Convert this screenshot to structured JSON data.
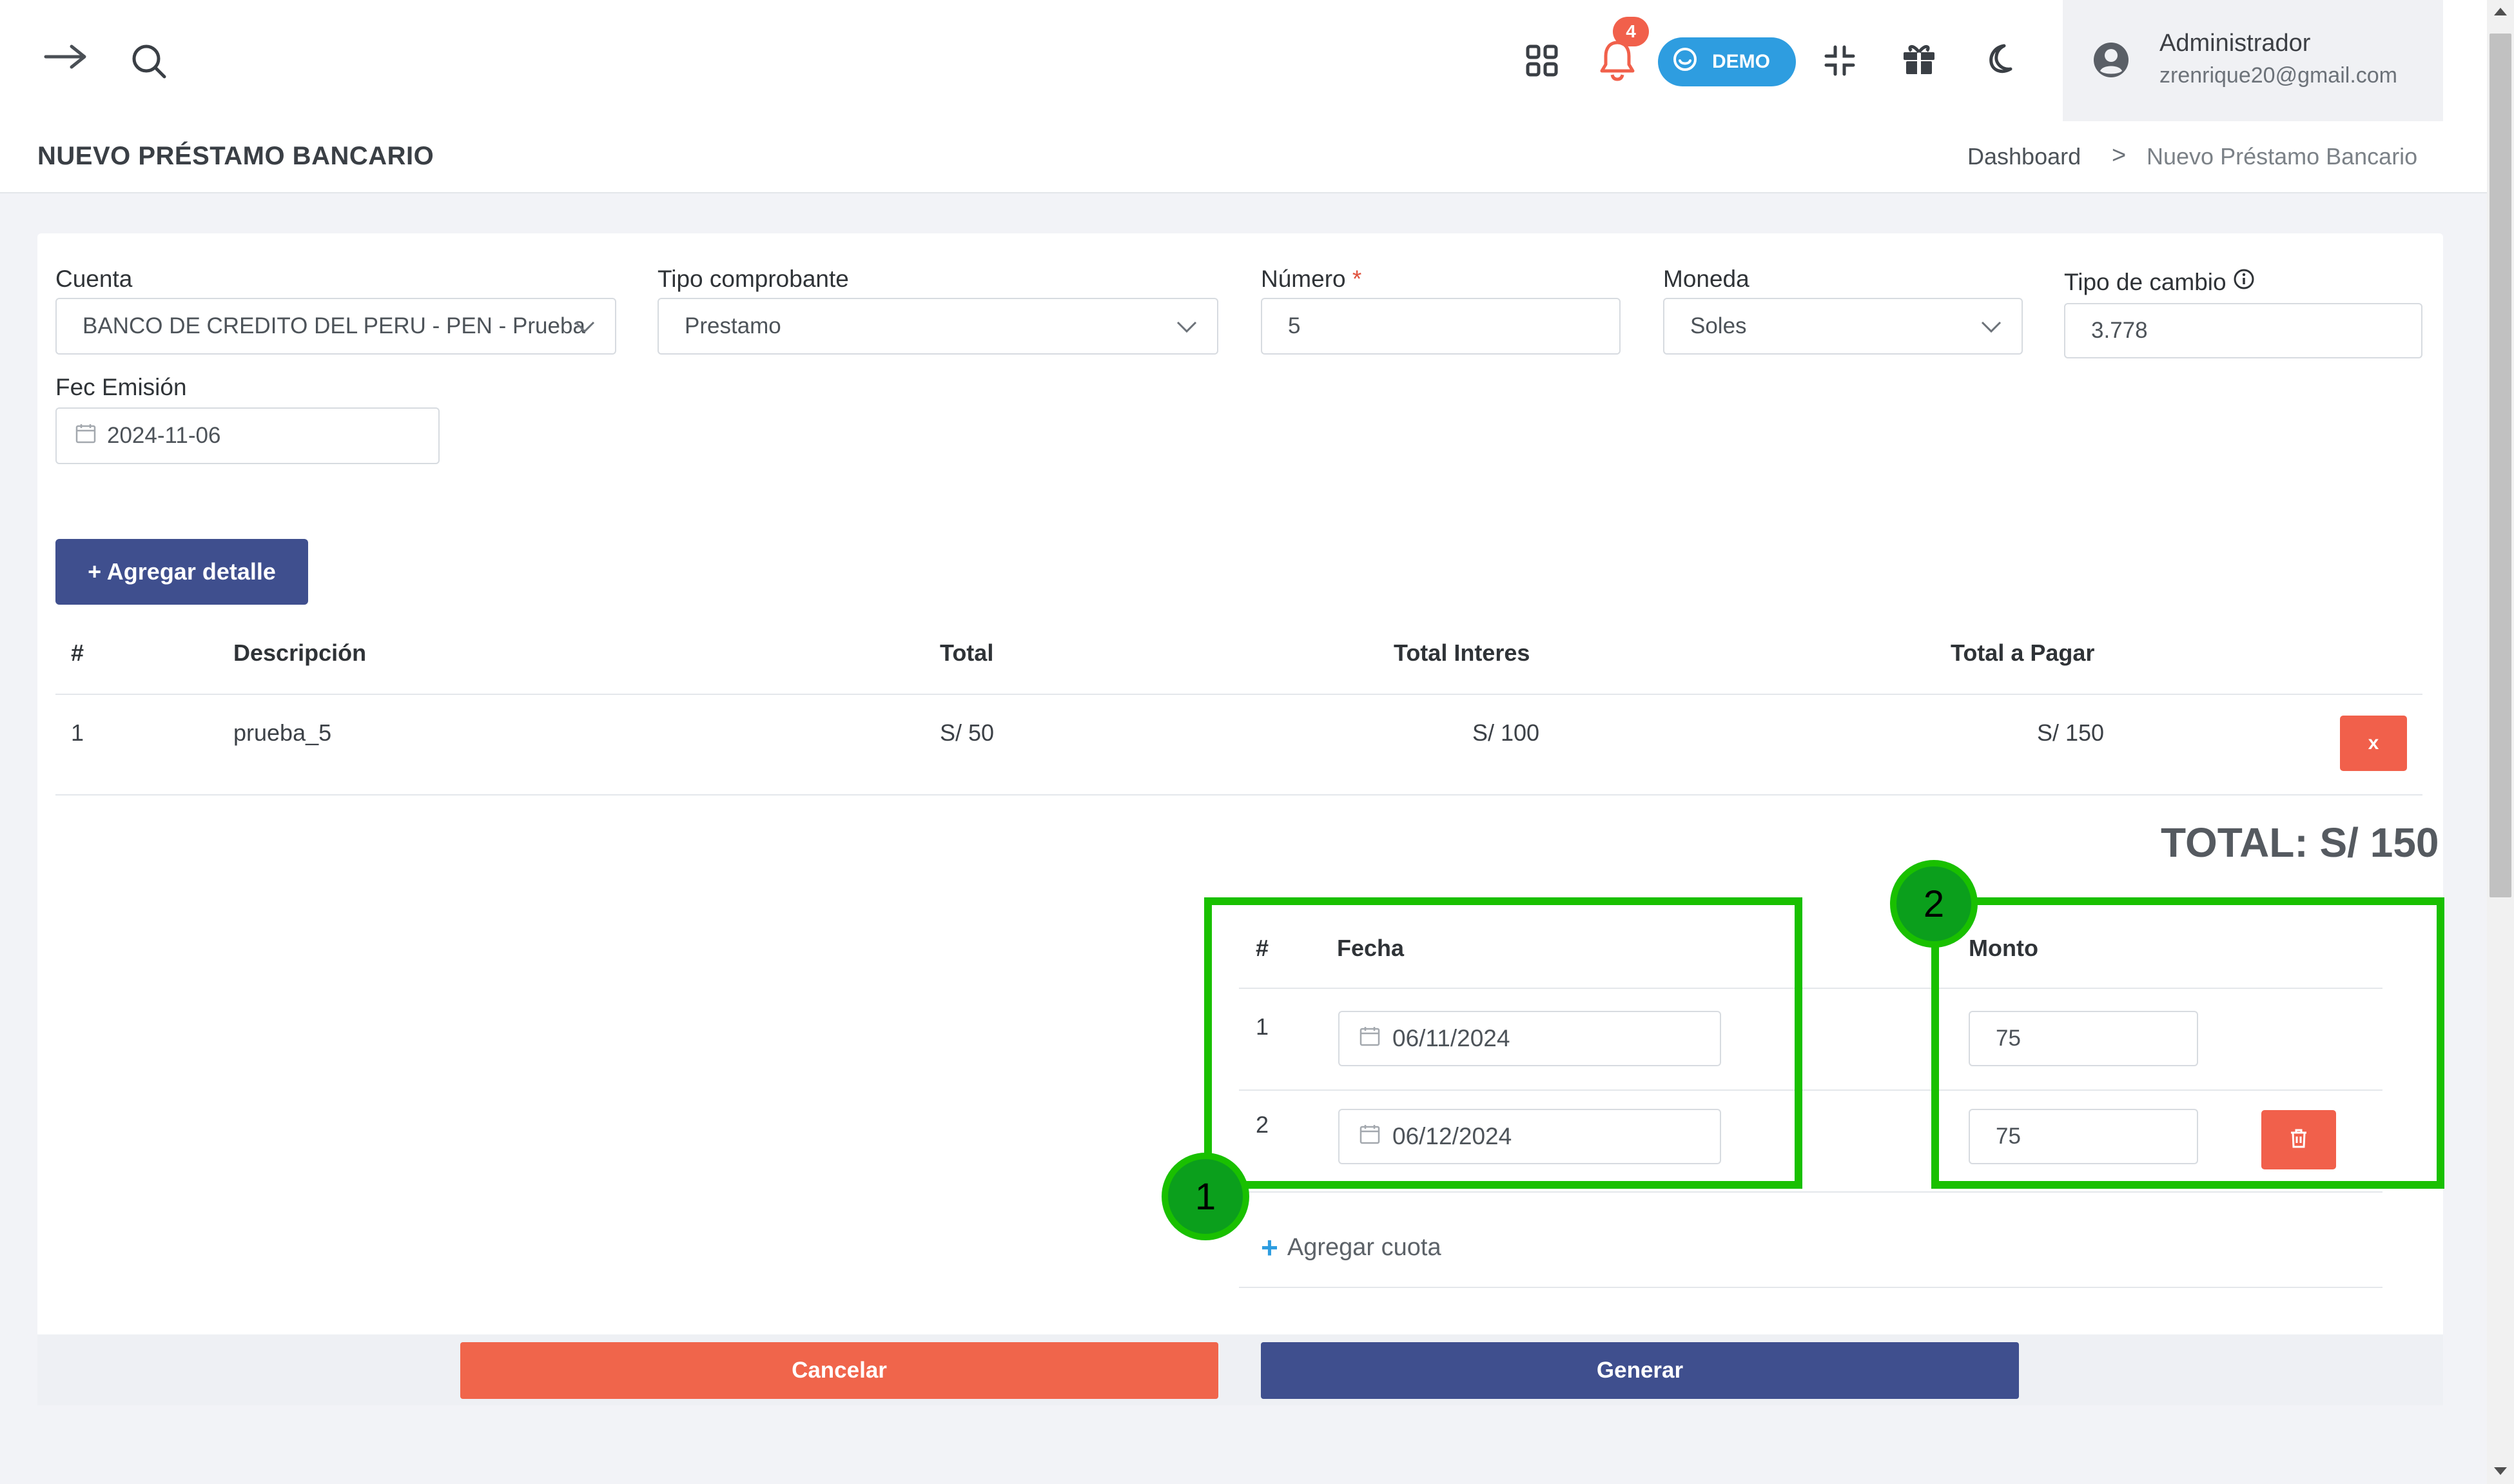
{
  "topbar": {
    "notification_count": "4",
    "demo_label": "DEMO",
    "user_name": "Administrador",
    "user_email": "zrenrique20@gmail.com",
    "icons": [
      "arrow-right-icon",
      "search-icon",
      "apps-grid-icon",
      "bell-icon",
      "smile-icon",
      "compress-icon",
      "gift-icon",
      "moon-icon",
      "user-circle-icon"
    ]
  },
  "page": {
    "title": "NUEVO PRÉSTAMO BANCARIO",
    "breadcrumb": {
      "home": "Dashboard",
      "separator": ">",
      "current": "Nuevo Préstamo Bancario"
    }
  },
  "form": {
    "cuenta": {
      "label": "Cuenta",
      "value": "BANCO DE CREDITO DEL PERU - PEN - Prueba"
    },
    "tipo_comprobante": {
      "label": "Tipo comprobante",
      "value": "Prestamo"
    },
    "numero": {
      "label": "Número",
      "required": "*",
      "value": "5"
    },
    "moneda": {
      "label": "Moneda",
      "value": "Soles"
    },
    "tipo_cambio": {
      "label": "Tipo de cambio",
      "value": "3.778"
    },
    "fec_emision": {
      "label": "Fec Emisión",
      "value": "2024-11-06"
    }
  },
  "add_detail_label": "+ Agregar detalle",
  "detail_table": {
    "headers": [
      "#",
      "Descripción",
      "Total",
      "Total Interes",
      "Total a Pagar"
    ],
    "rows": [
      {
        "num": "1",
        "descripcion": "prueba_5",
        "total": "S/ 50",
        "total_interes": "S/ 100",
        "total_pagar": "S/ 150",
        "remove": "x"
      }
    ]
  },
  "total_label": "TOTAL: S/ 150",
  "quota_table": {
    "headers": {
      "num": "#",
      "fecha": "Fecha",
      "monto": "Monto"
    },
    "rows": [
      {
        "num": "1",
        "fecha": "06/11/2024",
        "monto": "75"
      },
      {
        "num": "2",
        "fecha": "06/12/2024",
        "monto": "75"
      }
    ],
    "add_label": "Agregar cuota"
  },
  "markers": [
    "1",
    "2"
  ],
  "actions": {
    "cancel": "Cancelar",
    "generate": "Generar"
  },
  "colors": {
    "primary": "#3f4f8e",
    "danger": "#f1604b",
    "info": "#2e9de0",
    "highlight": "#19c000"
  }
}
